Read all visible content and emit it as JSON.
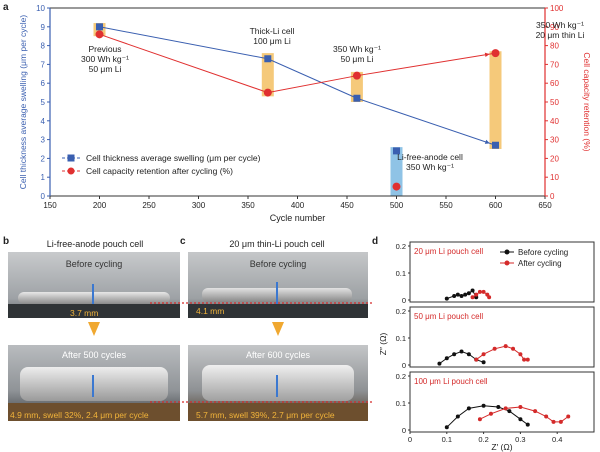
{
  "panel_labels": {
    "a": "a",
    "b": "b",
    "c": "c",
    "d": "d"
  },
  "chart_data": [
    {
      "type": "line",
      "xlabel": "Cycle number",
      "ylabel_left": "Cell thickness average swelling (μm per cycle)",
      "ylabel_right": "Cell capacity retention (%)",
      "xlim": [
        150,
        650
      ],
      "ylim_left": [
        0,
        10
      ],
      "ylim_right": [
        0,
        100
      ],
      "xticks": [
        150,
        200,
        250,
        300,
        350,
        400,
        450,
        500,
        550,
        600,
        650
      ],
      "yticks_left": [
        0,
        1,
        2,
        3,
        4,
        5,
        6,
        7,
        8,
        9,
        10
      ],
      "yticks_right": [
        0,
        10,
        20,
        30,
        40,
        50,
        60,
        70,
        80,
        90,
        100
      ],
      "series": [
        {
          "name": "Cell thickness average swelling (μm per cycle)",
          "axis": "left",
          "color": "#3a5fb0",
          "x": [
            200,
            370,
            460,
            600
          ],
          "y": [
            9.0,
            7.3,
            5.2,
            2.7
          ]
        },
        {
          "name": "Cell capacity retention after cycling (%)",
          "axis": "right",
          "color": "#e03030",
          "x": [
            200,
            370,
            460,
            600
          ],
          "y": [
            86,
            55,
            64,
            76
          ]
        }
      ],
      "extra_points": [
        {
          "x": 500,
          "y_left": 2.4,
          "y_right": 5
        }
      ],
      "highlight_bars": [
        {
          "x": 200,
          "y_left": [
            8.5,
            9.2
          ],
          "color": "#f5c97a"
        },
        {
          "x": 370,
          "y_left": [
            5.3,
            7.6
          ],
          "color": "#f5c97a"
        },
        {
          "x": 460,
          "y_left": [
            5.0,
            6.6
          ],
          "color": "#f5c97a"
        },
        {
          "x": 500,
          "y_left": [
            0.0,
            2.6
          ],
          "color": "#8fc3e6"
        },
        {
          "x": 600,
          "y_left": [
            2.5,
            7.7
          ],
          "color": "#f5c97a"
        }
      ],
      "annotations": [
        {
          "lines": [
            "Previous",
            "300 Wh kg⁻¹",
            "50 μm Li"
          ]
        },
        {
          "lines": [
            "Thick-Li cell",
            "100 μm Li"
          ]
        },
        {
          "lines": [
            "350 Wh kg⁻¹",
            "50 μm Li"
          ]
        },
        {
          "lines": [
            "Li-free-anode cell",
            "350 Wh kg⁻¹"
          ]
        },
        {
          "lines": [
            "350 Wh kg⁻¹",
            "20 μm thin Li"
          ]
        }
      ],
      "legend": "bottom-left"
    },
    {
      "type": "scatter",
      "xlabel": "Z′ (Ω)",
      "ylabel": "Z″ (Ω)",
      "xlim": [
        0,
        0.5
      ],
      "xticks": [
        0,
        0.1,
        0.2,
        0.3,
        0.4
      ],
      "legend": [
        "Before cycling",
        "After cycling"
      ],
      "subplots": [
        {
          "label": "20 μm Li pouch cell",
          "ylim": [
            0,
            0.2
          ],
          "yticks": [
            0,
            0.1,
            0.2
          ],
          "series": [
            {
              "name": "Before cycling",
              "color": "#111111",
              "x": [
                0.1,
                0.12,
                0.13,
                0.14,
                0.15,
                0.16,
                0.17,
                0.18
              ],
              "y": [
                0.005,
                0.015,
                0.02,
                0.015,
                0.02,
                0.025,
                0.035,
                0.01
              ]
            },
            {
              "name": "After cycling",
              "color": "#d42a2a",
              "x": [
                0.17,
                0.18,
                0.19,
                0.2,
                0.21,
                0.215
              ],
              "y": [
                0.01,
                0.02,
                0.03,
                0.03,
                0.02,
                0.01
              ]
            }
          ]
        },
        {
          "label": "50 μm Li pouch cell",
          "ylim": [
            0,
            0.2
          ],
          "yticks": [
            0,
            0.1,
            0.2
          ],
          "series": [
            {
              "name": "Before cycling",
              "color": "#111111",
              "x": [
                0.08,
                0.1,
                0.12,
                0.14,
                0.16,
                0.18,
                0.2
              ],
              "y": [
                0.005,
                0.025,
                0.04,
                0.05,
                0.04,
                0.02,
                0.01
              ]
            },
            {
              "name": "After cycling",
              "color": "#d42a2a",
              "x": [
                0.18,
                0.2,
                0.23,
                0.26,
                0.28,
                0.3,
                0.31,
                0.32
              ],
              "y": [
                0.02,
                0.04,
                0.06,
                0.07,
                0.06,
                0.04,
                0.02,
                0.02
              ]
            }
          ]
        },
        {
          "label": "100 μm Li pouch cell",
          "ylim": [
            0,
            0.2
          ],
          "yticks": [
            0,
            0.1,
            0.2
          ],
          "series": [
            {
              "name": "Before cycling",
              "color": "#111111",
              "x": [
                0.1,
                0.13,
                0.16,
                0.2,
                0.24,
                0.27,
                0.3,
                0.32
              ],
              "y": [
                0.01,
                0.05,
                0.08,
                0.09,
                0.085,
                0.07,
                0.04,
                0.02
              ]
            },
            {
              "name": "After cycling",
              "color": "#d42a2a",
              "x": [
                0.19,
                0.22,
                0.26,
                0.3,
                0.34,
                0.37,
                0.39,
                0.41,
                0.43
              ],
              "y": [
                0.04,
                0.06,
                0.08,
                0.085,
                0.07,
                0.05,
                0.03,
                0.03,
                0.05
              ]
            }
          ]
        }
      ]
    }
  ],
  "photos": {
    "b_title": "Li-free-anode pouch cell",
    "c_title": "20 μm thin-Li pouch cell",
    "before": "Before cycling",
    "b_before_measure": "3.7 mm",
    "c_before_measure": "4.1 mm",
    "b_after": "After 500 cycles",
    "c_after": "After 600 cycles",
    "b_after_measure": "4.9 mm, swell 32%, 2.4 μm per cycle",
    "c_after_measure": "5.7 mm, swell 39%, 2.7 μm per cycle"
  },
  "colors": {
    "blue": "#3a5fb0",
    "red": "#e03030",
    "orange_bar": "#f5c97a",
    "blue_bar": "#8fc3e6",
    "arrow": "#f0a830"
  }
}
